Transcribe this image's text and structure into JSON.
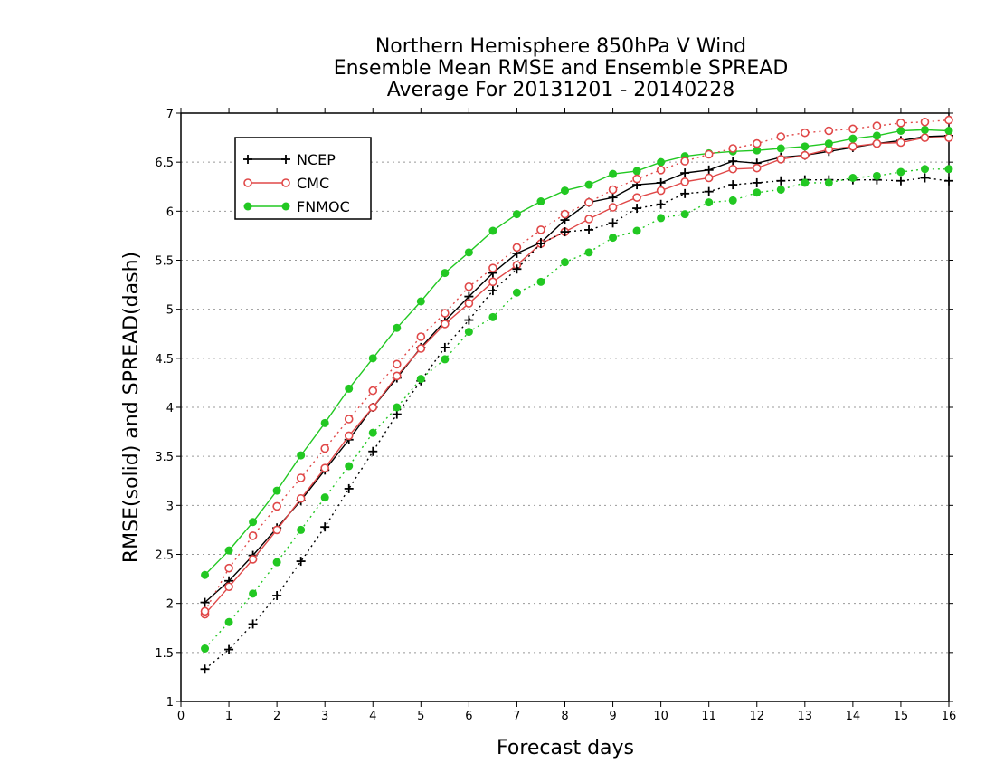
{
  "chart_data": {
    "type": "line",
    "title_lines": [
      "Northern Hemisphere 850hPa V Wind",
      "Ensemble Mean RMSE and Ensemble SPREAD",
      "Average For 20131201 - 20140228"
    ],
    "xlabel": "Forecast days",
    "ylabel": "RMSE(solid) and SPREAD(dash)",
    "xlim": [
      0,
      16
    ],
    "ylim": [
      1,
      7
    ],
    "xticks": [
      "0",
      "1",
      "2",
      "3",
      "4",
      "5",
      "6",
      "7",
      "8",
      "9",
      "10",
      "11",
      "12",
      "13",
      "14",
      "15",
      "16"
    ],
    "yticks": [
      "1",
      "1.5",
      "2",
      "2.5",
      "3",
      "3.5",
      "4",
      "4.5",
      "5",
      "5.5",
      "6",
      "6.5",
      "7"
    ],
    "grid": "horizontal dotted",
    "legend_position": "top-left",
    "x": [
      0.5,
      1,
      1.5,
      2,
      2.5,
      3,
      3.5,
      4,
      4.5,
      5,
      5.5,
      6,
      6.5,
      7,
      7.5,
      8,
      8.5,
      9,
      9.5,
      10,
      10.5,
      11,
      11.5,
      12,
      12.5,
      13,
      13.5,
      14,
      14.5,
      15,
      15.5,
      16
    ],
    "series": [
      {
        "name": "NCEP",
        "metric": "RMSE",
        "style": "solid",
        "marker": "plus",
        "color": "#000000",
        "values": [
          2.01,
          2.23,
          2.49,
          2.77,
          3.05,
          3.36,
          3.67,
          4.0,
          4.3,
          4.61,
          4.88,
          5.13,
          5.37,
          5.57,
          5.68,
          5.91,
          6.09,
          6.14,
          6.27,
          6.29,
          6.39,
          6.42,
          6.51,
          6.49,
          6.55,
          6.57,
          6.61,
          6.65,
          6.69,
          6.72,
          6.76,
          6.77
        ]
      },
      {
        "name": "CMC",
        "metric": "RMSE",
        "style": "solid",
        "marker": "circle-open",
        "color": "#e04848",
        "values": [
          1.89,
          2.17,
          2.45,
          2.75,
          3.07,
          3.38,
          3.71,
          4.0,
          4.32,
          4.6,
          4.85,
          5.06,
          5.28,
          5.45,
          5.67,
          5.79,
          5.92,
          6.04,
          6.14,
          6.21,
          6.3,
          6.34,
          6.43,
          6.44,
          6.53,
          6.57,
          6.63,
          6.66,
          6.69,
          6.7,
          6.75,
          6.75
        ]
      },
      {
        "name": "FNMOC",
        "metric": "RMSE",
        "style": "solid",
        "marker": "circle-filled",
        "color": "#22c822",
        "values": [
          2.29,
          2.54,
          2.83,
          3.15,
          3.51,
          3.84,
          4.19,
          4.5,
          4.81,
          5.08,
          5.37,
          5.58,
          5.8,
          5.97,
          6.1,
          6.21,
          6.27,
          6.38,
          6.41,
          6.5,
          6.56,
          6.59,
          6.61,
          6.62,
          6.64,
          6.66,
          6.69,
          6.74,
          6.77,
          6.82,
          6.83,
          6.82
        ]
      },
      {
        "name": "NCEP",
        "metric": "SPREAD",
        "style": "dash",
        "marker": "plus",
        "color": "#000000",
        "values": [
          1.33,
          1.53,
          1.79,
          2.08,
          2.43,
          2.78,
          3.17,
          3.55,
          3.93,
          4.27,
          4.61,
          4.89,
          5.19,
          5.41,
          5.67,
          5.79,
          5.81,
          5.88,
          6.03,
          6.07,
          6.18,
          6.2,
          6.27,
          6.29,
          6.31,
          6.32,
          6.32,
          6.32,
          6.32,
          6.31,
          6.34,
          6.31
        ]
      },
      {
        "name": "CMC",
        "metric": "SPREAD",
        "style": "dash",
        "marker": "circle-open",
        "color": "#e04848",
        "values": [
          1.92,
          2.36,
          2.69,
          2.99,
          3.28,
          3.58,
          3.88,
          4.17,
          4.44,
          4.72,
          4.96,
          5.23,
          5.42,
          5.63,
          5.81,
          5.97,
          6.09,
          6.22,
          6.33,
          6.42,
          6.51,
          6.58,
          6.64,
          6.69,
          6.76,
          6.8,
          6.82,
          6.84,
          6.87,
          6.9,
          6.91,
          6.93
        ]
      },
      {
        "name": "FNMOC",
        "metric": "SPREAD",
        "style": "dash",
        "marker": "circle-filled",
        "color": "#22c822",
        "values": [
          1.54,
          1.81,
          2.1,
          2.42,
          2.75,
          3.08,
          3.4,
          3.74,
          4.0,
          4.29,
          4.49,
          4.77,
          4.92,
          5.17,
          5.28,
          5.48,
          5.58,
          5.73,
          5.8,
          5.93,
          5.97,
          6.09,
          6.11,
          6.19,
          6.22,
          6.29,
          6.29,
          6.34,
          6.36,
          6.4,
          6.43,
          6.43
        ]
      }
    ],
    "legend": [
      {
        "label": "NCEP",
        "marker": "plus",
        "color": "#000000"
      },
      {
        "label": "CMC",
        "marker": "circle-open",
        "color": "#e04848"
      },
      {
        "label": "FNMOC",
        "marker": "circle-filled",
        "color": "#22c822"
      }
    ]
  }
}
